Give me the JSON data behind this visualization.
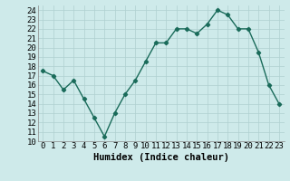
{
  "x": [
    0,
    1,
    2,
    3,
    4,
    5,
    6,
    7,
    8,
    9,
    10,
    11,
    12,
    13,
    14,
    15,
    16,
    17,
    18,
    19,
    20,
    21,
    22,
    23
  ],
  "y": [
    17.5,
    17.0,
    15.5,
    16.5,
    14.5,
    12.5,
    10.5,
    13.0,
    15.0,
    16.5,
    18.5,
    20.5,
    20.5,
    22.0,
    22.0,
    21.5,
    22.5,
    24.0,
    23.5,
    22.0,
    22.0,
    19.5,
    16.0,
    14.0
  ],
  "line_color": "#1a6b5a",
  "marker": "D",
  "marker_size": 2.2,
  "bg_color": "#ceeaea",
  "grid_color": "#afd0d0",
  "xlabel": "Humidex (Indice chaleur)",
  "xlim": [
    -0.5,
    23.5
  ],
  "ylim": [
    10,
    24.5
  ],
  "yticks": [
    10,
    11,
    12,
    13,
    14,
    15,
    16,
    17,
    18,
    19,
    20,
    21,
    22,
    23,
    24
  ],
  "xtick_labels": [
    "0",
    "1",
    "2",
    "3",
    "4",
    "5",
    "6",
    "7",
    "8",
    "9",
    "10",
    "11",
    "12",
    "13",
    "14",
    "15",
    "16",
    "17",
    "18",
    "19",
    "20",
    "21",
    "22",
    "23"
  ],
  "xlabel_fontsize": 7.5,
  "tick_fontsize": 6.5,
  "line_width": 1.0
}
